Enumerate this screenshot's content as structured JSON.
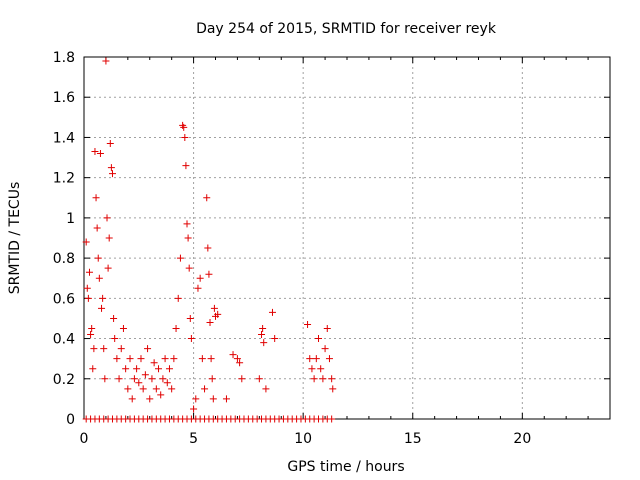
{
  "chart_data": {
    "type": "scatter",
    "title": "Day 254 of 2015, SRMTID for receiver reyk",
    "xlabel": "GPS time / hours",
    "ylabel": "SRMTID / TECUs",
    "xlim": [
      0,
      24
    ],
    "ylim": [
      0,
      1.8
    ],
    "x_ticks": [
      0,
      5,
      10,
      15,
      20
    ],
    "x_tick_labels": [
      "0",
      "5",
      "10",
      "15",
      "20"
    ],
    "y_ticks": [
      0,
      0.2,
      0.4,
      0.6,
      0.8,
      1.0,
      1.2,
      1.4,
      1.6,
      1.8
    ],
    "y_tick_labels": [
      "0",
      "0.2",
      "0.4",
      "0.6",
      "0.8",
      "1",
      "1.2",
      "1.4",
      "1.6",
      "1.8"
    ],
    "grid": true,
    "marker": "+",
    "color": "#e00000",
    "series": [
      {
        "name": "SRMTID",
        "points": [
          [
            0.1,
            0.88
          ],
          [
            0.15,
            0.65
          ],
          [
            0.2,
            0.6
          ],
          [
            0.25,
            0.73
          ],
          [
            0.3,
            0.42
          ],
          [
            0.35,
            0.45
          ],
          [
            0.4,
            0.25
          ],
          [
            0.45,
            0.35
          ],
          [
            0.5,
            1.33
          ],
          [
            0.55,
            1.1
          ],
          [
            0.6,
            0.95
          ],
          [
            0.65,
            0.8
          ],
          [
            0.7,
            0.7
          ],
          [
            0.75,
            1.32
          ],
          [
            0.8,
            0.55
          ],
          [
            0.85,
            0.6
          ],
          [
            0.9,
            0.35
          ],
          [
            0.95,
            0.2
          ],
          [
            1.0,
            1.78
          ],
          [
            1.05,
            1.0
          ],
          [
            1.1,
            0.75
          ],
          [
            1.15,
            0.9
          ],
          [
            1.2,
            1.37
          ],
          [
            1.25,
            1.25
          ],
          [
            1.3,
            1.22
          ],
          [
            1.35,
            0.5
          ],
          [
            1.4,
            0.4
          ],
          [
            1.5,
            0.3
          ],
          [
            1.6,
            0.2
          ],
          [
            1.7,
            0.35
          ],
          [
            1.8,
            0.45
          ],
          [
            1.9,
            0.25
          ],
          [
            2.0,
            0.15
          ],
          [
            2.1,
            0.3
          ],
          [
            2.2,
            0.1
          ],
          [
            2.3,
            0.2
          ],
          [
            2.4,
            0.25
          ],
          [
            2.5,
            0.18
          ],
          [
            2.6,
            0.3
          ],
          [
            2.7,
            0.15
          ],
          [
            2.8,
            0.22
          ],
          [
            2.9,
            0.35
          ],
          [
            3.0,
            0.1
          ],
          [
            3.1,
            0.2
          ],
          [
            3.2,
            0.28
          ],
          [
            3.3,
            0.15
          ],
          [
            3.4,
            0.25
          ],
          [
            3.5,
            0.12
          ],
          [
            3.6,
            0.2
          ],
          [
            3.7,
            0.3
          ],
          [
            3.8,
            0.18
          ],
          [
            3.9,
            0.25
          ],
          [
            4.0,
            0.15
          ],
          [
            4.1,
            0.3
          ],
          [
            4.2,
            0.45
          ],
          [
            4.3,
            0.6
          ],
          [
            4.4,
            0.8
          ],
          [
            4.5,
            1.46
          ],
          [
            4.55,
            1.45
          ],
          [
            4.6,
            1.4
          ],
          [
            4.65,
            1.26
          ],
          [
            4.7,
            0.97
          ],
          [
            4.75,
            0.9
          ],
          [
            4.8,
            0.75
          ],
          [
            4.85,
            0.5
          ],
          [
            4.9,
            0.4
          ],
          [
            5.0,
            0.05
          ],
          [
            5.1,
            0.1
          ],
          [
            5.2,
            0.65
          ],
          [
            5.3,
            0.7
          ],
          [
            5.4,
            0.3
          ],
          [
            5.5,
            0.15
          ],
          [
            5.6,
            1.1
          ],
          [
            5.65,
            0.85
          ],
          [
            5.7,
            0.72
          ],
          [
            5.75,
            0.48
          ],
          [
            5.8,
            0.3
          ],
          [
            5.85,
            0.2
          ],
          [
            5.9,
            0.1
          ],
          [
            5.95,
            0.55
          ],
          [
            6.0,
            0.51
          ],
          [
            6.1,
            0.52
          ],
          [
            6.5,
            0.1
          ],
          [
            6.8,
            0.32
          ],
          [
            7.0,
            0.3
          ],
          [
            7.1,
            0.28
          ],
          [
            7.2,
            0.2
          ],
          [
            8.0,
            0.2
          ],
          [
            8.1,
            0.42
          ],
          [
            8.15,
            0.45
          ],
          [
            8.2,
            0.38
          ],
          [
            8.3,
            0.15
          ],
          [
            8.6,
            0.53
          ],
          [
            8.7,
            0.4
          ],
          [
            10.2,
            0.47
          ],
          [
            10.3,
            0.3
          ],
          [
            10.4,
            0.25
          ],
          [
            10.5,
            0.2
          ],
          [
            10.6,
            0.3
          ],
          [
            10.7,
            0.4
          ],
          [
            10.8,
            0.25
          ],
          [
            10.9,
            0.2
          ],
          [
            11.0,
            0.35
          ],
          [
            11.1,
            0.45
          ],
          [
            11.2,
            0.3
          ],
          [
            11.3,
            0.2
          ],
          [
            11.35,
            0.15
          ],
          [
            0.1,
            0
          ],
          [
            0.3,
            0
          ],
          [
            0.5,
            0
          ],
          [
            0.7,
            0
          ],
          [
            0.9,
            0
          ],
          [
            1.1,
            0
          ],
          [
            1.3,
            0
          ],
          [
            1.5,
            0
          ],
          [
            1.7,
            0
          ],
          [
            1.9,
            0
          ],
          [
            2.1,
            0
          ],
          [
            2.3,
            0
          ],
          [
            2.5,
            0
          ],
          [
            2.7,
            0
          ],
          [
            2.9,
            0
          ],
          [
            3.1,
            0
          ],
          [
            3.3,
            0
          ],
          [
            3.5,
            0
          ],
          [
            3.7,
            0
          ],
          [
            3.9,
            0
          ],
          [
            4.1,
            0
          ],
          [
            4.3,
            0
          ],
          [
            4.5,
            0
          ],
          [
            4.7,
            0
          ],
          [
            4.9,
            0
          ],
          [
            5.1,
            0
          ],
          [
            5.3,
            0
          ],
          [
            5.5,
            0
          ],
          [
            5.7,
            0
          ],
          [
            5.9,
            0
          ],
          [
            6.1,
            0
          ],
          [
            6.3,
            0
          ],
          [
            6.5,
            0
          ],
          [
            6.7,
            0
          ],
          [
            6.9,
            0
          ],
          [
            7.1,
            0
          ],
          [
            7.3,
            0
          ],
          [
            7.5,
            0
          ],
          [
            7.7,
            0
          ],
          [
            7.9,
            0
          ],
          [
            8.1,
            0
          ],
          [
            8.3,
            0
          ],
          [
            8.5,
            0
          ],
          [
            8.7,
            0
          ],
          [
            8.9,
            0
          ],
          [
            9.1,
            0
          ],
          [
            9.3,
            0
          ],
          [
            9.5,
            0
          ],
          [
            9.7,
            0
          ],
          [
            9.9,
            0
          ],
          [
            10.1,
            0
          ],
          [
            10.3,
            0
          ],
          [
            10.5,
            0
          ],
          [
            10.7,
            0
          ],
          [
            10.9,
            0
          ],
          [
            11.1,
            0
          ],
          [
            11.3,
            0
          ]
        ]
      }
    ]
  }
}
